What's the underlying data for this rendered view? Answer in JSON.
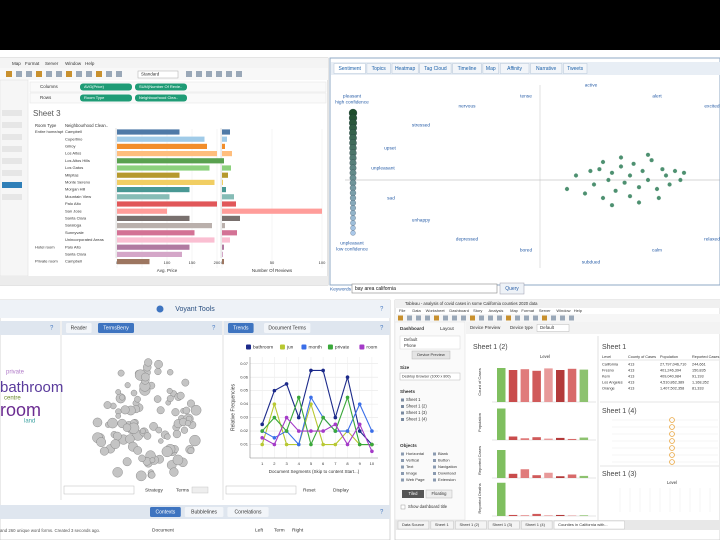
{
  "tableau_top": {
    "menu": [
      "Map",
      "Format",
      "Server",
      "Window",
      "Help"
    ],
    "toolbar_dropdown": "Standard",
    "shelf_labels": [
      "Columns",
      "Rows"
    ],
    "column_pills": [
      "AVG(Price)",
      "SUM(Number Of Revie.."
    ],
    "row_pills": [
      "Room Type",
      "Neighbourhood Clea.."
    ],
    "sheet_title": "Sheet 3",
    "headers": [
      "Room Type",
      "Neighbourhood Clean.."
    ],
    "chart": {
      "type": "bar",
      "room_types": [
        "Entire home/apt",
        null,
        null,
        null,
        null,
        null,
        null,
        null,
        null,
        null,
        null,
        null,
        null,
        null,
        null,
        null,
        "Hotel room",
        null,
        "Private room"
      ],
      "categories": [
        "Campbell",
        "Cupertino",
        "Gilroy",
        "Los Altos",
        "Los Altos Hills",
        "Los Gatos",
        "Milpitas",
        "Monte Sereno",
        "Morgan Hill",
        "Mountain View",
        "Palo Alto",
        "San Jose",
        "Santa Clara",
        "Saratoga",
        "Sunnyvale",
        "Unincorporated Areas",
        "Palo Alto",
        "Santa Clara",
        "Campbell"
      ],
      "colors": [
        "#4e79a7",
        "#a0cbe8",
        "#f28e2b",
        "#ffbe7d",
        "#59a14f",
        "#8cd17d",
        "#b6992d",
        "#f1ce63",
        "#499894",
        "#86bcb6",
        "#e15759",
        "#ff9d9a",
        "#79706e",
        "#bab0ac",
        "#d37295",
        "#fabfd2",
        "#b07aa1",
        "#d4a6c8",
        "#9d7660"
      ],
      "price": {
        "label": "Avg. Price",
        "values": [
          125,
          175,
          180,
          200,
          210,
          185,
          125,
          195,
          145,
          105,
          200,
          100,
          145,
          190,
          155,
          195,
          145,
          130,
          65
        ],
        "xlim": [
          0,
          200
        ],
        "xticks": [
          0,
          50,
          100,
          150,
          200
        ]
      },
      "reviews": {
        "label": "Number Of Reviews",
        "values": [
          8,
          5,
          3,
          10,
          2,
          9,
          6,
          1,
          4,
          12,
          14,
          100,
          18,
          3,
          15,
          8,
          2,
          1,
          2
        ],
        "xlim": [
          0,
          100
        ],
        "xticks": [
          0,
          50,
          100
        ]
      }
    }
  },
  "sentiment": {
    "tabs": [
      "Sentiment",
      "Topics",
      "Heatmap",
      "Tag Cloud",
      "Timeline",
      "Map",
      "Affinity",
      "Narrative",
      "Tweets"
    ],
    "top_confidence": [
      "pleasant",
      "high confidence"
    ],
    "bottom_confidence": [
      "unpleasant",
      "low confidence"
    ],
    "emotions": [
      "active",
      "tense",
      "alert",
      "nervous",
      "excited",
      "stressed",
      "upset",
      "unpleasant",
      "sad",
      "unhappy",
      "depressed",
      "bored",
      "calm",
      "subdued",
      "relaxed"
    ],
    "chart": {
      "type": "scatter",
      "x": [
        0.15,
        0.2,
        0.25,
        0.28,
        0.3,
        0.33,
        0.35,
        0.38,
        0.4,
        0.42,
        0.45,
        0.47,
        0.5,
        0.52,
        0.55,
        0.57,
        0.6,
        0.62,
        0.65,
        0.68,
        0.7,
        0.72,
        0.75,
        0.78,
        0.8,
        0.55,
        0.6,
        0.45,
        0.5,
        0.66,
        0.4,
        0.35
      ],
      "y": [
        -0.1,
        0.05,
        -0.15,
        0.1,
        -0.05,
        0.12,
        -0.2,
        0.0,
        0.08,
        -0.12,
        0.15,
        -0.03,
        0.05,
        0.18,
        -0.08,
        0.1,
        0.0,
        0.22,
        -0.1,
        0.12,
        0.05,
        -0.05,
        0.1,
        0.0,
        0.08,
        -0.25,
        0.28,
        0.25,
        -0.18,
        -0.2,
        -0.28,
        0.2
      ],
      "xlim": [
        -1,
        1
      ],
      "ylim": [
        -1,
        1
      ],
      "color": "#2e7d57"
    },
    "keywords_label": "Keywords",
    "query": "bay area california",
    "button": "Query"
  },
  "voyant": {
    "title": "Voyant Tools",
    "help": "?",
    "tabs": [
      "Reader",
      "TermsBerry",
      "Trends",
      "Document Terms"
    ],
    "cloud_words": [
      "bathroom",
      "room",
      "centre",
      "land",
      "private"
    ],
    "berry_controls": [
      "Strategy",
      "Terms"
    ],
    "trends": {
      "type": "line",
      "x": [
        1,
        2,
        3,
        4,
        5,
        6,
        7,
        8,
        9,
        10
      ],
      "xlim": [
        0,
        10.5
      ],
      "xticks": [
        1,
        2,
        3,
        4,
        5,
        6,
        7,
        8,
        9,
        10
      ],
      "ylim": [
        0,
        0.075
      ],
      "yticks": [
        0.01,
        0.02,
        0.03,
        0.04,
        0.05,
        0.06,
        0.07
      ],
      "ylabel": "Relative Frequencies",
      "xlabel": "Document Segments (Skip to content Start...)",
      "series": [
        {
          "name": "bathroom",
          "color": "#1c2a8a",
          "values": [
            0.025,
            0.05,
            0.055,
            0.03,
            0.065,
            0.065,
            0.03,
            0.06,
            0.02,
            0.01
          ]
        },
        {
          "name": "jun",
          "color": "#b8c832",
          "values": [
            0.01,
            0.04,
            0.01,
            0.01,
            0.04,
            0.01,
            0.01,
            0.02,
            0.01,
            0.01
          ]
        },
        {
          "name": "month",
          "color": "#3a6ee8",
          "values": [
            0.02,
            0.015,
            0.02,
            0.01,
            0.045,
            0.03,
            0.02,
            0.02,
            0.04,
            0.02
          ]
        },
        {
          "name": "private",
          "color": "#3aa83a",
          "values": [
            0.02,
            0.03,
            0.02,
            0.045,
            0.01,
            0.03,
            0.02,
            0.045,
            0.01,
            0.01
          ]
        },
        {
          "name": "room",
          "color": "#a43ac8",
          "values": [
            0.015,
            0.01,
            0.03,
            0.02,
            0.02,
            0.02,
            0.025,
            0.01,
            0.025,
            0.005
          ]
        }
      ]
    },
    "trend_controls": [
      "Reset",
      "Display"
    ],
    "bottom_tabs": [
      "Contexts",
      "Bubblelines",
      "Correlations"
    ],
    "table_headers": [
      "Document",
      "Left",
      "Term",
      "Right"
    ],
    "status": "and 260 unique word forms. Created 3 seconds ago."
  },
  "tableau_bottom": {
    "window_title": "Tableau - analysis of covid cases in some California counties 2020 data",
    "menu": [
      "File",
      "Data",
      "Worksheet",
      "Dashboard",
      "Story",
      "Analysis",
      "Map",
      "Format",
      "Server",
      "Window",
      "Help"
    ],
    "pane_tabs": [
      "Dashboard",
      "Layout"
    ],
    "devices": [
      "Default",
      "Phone"
    ],
    "device_preview": "Device Preview",
    "size_label": "Size",
    "size_value": "Desktop Browser (1000 x 800)",
    "sheets_label": "Sheets",
    "sheets": [
      "Sheet 1",
      "Sheet 1 (2)",
      "Sheet 1 (3)",
      "Sheet 1 (4)"
    ],
    "objects_label": "Objects",
    "objects": [
      "Horizontal",
      "Blank",
      "Vertical",
      "Button",
      "Text",
      "Navigation",
      "Image",
      "Download",
      "Web Page",
      "Extension"
    ],
    "layout_modes": [
      "Tiled",
      "Floating"
    ],
    "show_title": "Show dashboard title",
    "preview_bar": [
      "Device Preview",
      "Device type",
      "Default"
    ],
    "bar_sheet": {
      "type": "bar",
      "title": "Sheet 1 (2)",
      "header": "Level",
      "colors": [
        "#7fbf5f",
        "#c94c4c",
        "#e07b7b",
        "#d05a5a",
        "#e89a9a",
        "#b33a3a",
        "#d86a6a",
        "#8dc26f"
      ],
      "ylim": [
        0,
        100
      ],
      "panels": [
        {
          "name": "Count of Cases",
          "values": [
            85,
            80,
            82,
            78,
            84,
            80,
            83,
            81
          ]
        },
        {
          "name": "Population",
          "values": [
            90,
            10,
            5,
            8,
            4,
            6,
            3,
            7
          ]
        },
        {
          "name": "Reported Cases",
          "values": [
            80,
            12,
            25,
            8,
            15,
            5,
            10,
            6
          ]
        },
        {
          "name": "Reported Deaths",
          "values": [
            95,
            3,
            2,
            6,
            2,
            3,
            1,
            2
          ]
        }
      ]
    },
    "table_sheet": {
      "title": "Sheet 1",
      "columns": [
        "Level",
        "County of Cases",
        "Population",
        "Reported Cases"
      ],
      "rows": [
        [
          "California",
          "413",
          "27,797,046,710",
          "244,661"
        ],
        [
          "Fresno",
          "413",
          "401,246,394",
          "150,835"
        ],
        [
          "Kern",
          "413",
          "409,040,984",
          "91,193"
        ],
        [
          "Los Angeles",
          "413",
          "4,510,862,389",
          "1,168,352"
        ],
        [
          "Orange",
          "413",
          "1,407,502,358",
          "81,333"
        ]
      ]
    },
    "circle_sheet": {
      "title": "Sheet 1 (4)"
    },
    "level_sheet": {
      "title": "Sheet 1 (3)",
      "header": "Level"
    },
    "tabs": [
      "Data Source",
      "Sheet 1",
      "Sheet 1 (2)",
      "Sheet 1 (3)",
      "Sheet 1 (4)",
      "Counties in California with..."
    ]
  }
}
